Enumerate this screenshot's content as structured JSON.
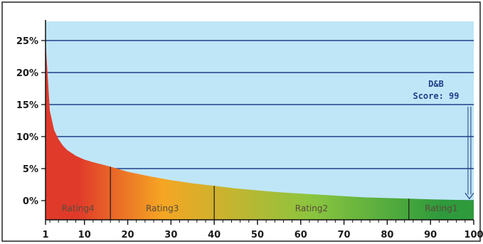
{
  "chart_data": {
    "type": "area",
    "title": "",
    "xlabel": "",
    "ylabel": "",
    "xlim": [
      1,
      100
    ],
    "ylim": [
      -3,
      28
    ],
    "x_ticks": [
      1,
      10,
      20,
      30,
      40,
      50,
      60,
      70,
      80,
      90,
      100
    ],
    "x_tick_labels": [
      "1",
      "10",
      "20",
      "30",
      "40",
      "50",
      "60",
      "70",
      "80",
      "90",
      "100"
    ],
    "y_ticks": [
      0,
      5,
      10,
      15,
      20,
      25
    ],
    "y_tick_labels": [
      "0%",
      "5%",
      "10%",
      "15%",
      "20%",
      "25%"
    ],
    "grid": true,
    "series": [
      {
        "x": [
          1,
          2,
          3,
          4,
          5,
          6,
          8,
          10,
          12,
          16,
          20,
          25,
          30,
          35,
          40,
          45,
          50,
          55,
          60,
          65,
          70,
          75,
          80,
          85,
          90,
          95,
          98,
          100
        ],
        "values": [
          25,
          14,
          11,
          9.6,
          8.6,
          7.9,
          7.0,
          6.4,
          6.0,
          5.3,
          4.5,
          3.8,
          3.2,
          2.7,
          2.3,
          1.9,
          1.6,
          1.3,
          1.1,
          0.9,
          0.7,
          0.5,
          0.4,
          0.3,
          0.2,
          0.12,
          0.08,
          0.05
        ]
      }
    ],
    "bands": [
      {
        "label": "Rating4",
        "from": 1,
        "to": 16,
        "color": "#e03a2a"
      },
      {
        "label": "Rating3",
        "from": 16,
        "to": 40,
        "color": "#f5a623"
      },
      {
        "label": "Rating2",
        "from": 40,
        "to": 85,
        "color": "#8bc53f"
      },
      {
        "label": "Rating1",
        "from": 85,
        "to": 100,
        "color": "#2e9a3c"
      }
    ],
    "annotation": {
      "line1": "D&B",
      "line2": "Score: 99",
      "x": 99
    },
    "colors": {
      "plot_background": "#bfe6f7",
      "grid_line": "#1f3f8a",
      "axis": "#111111"
    }
  }
}
